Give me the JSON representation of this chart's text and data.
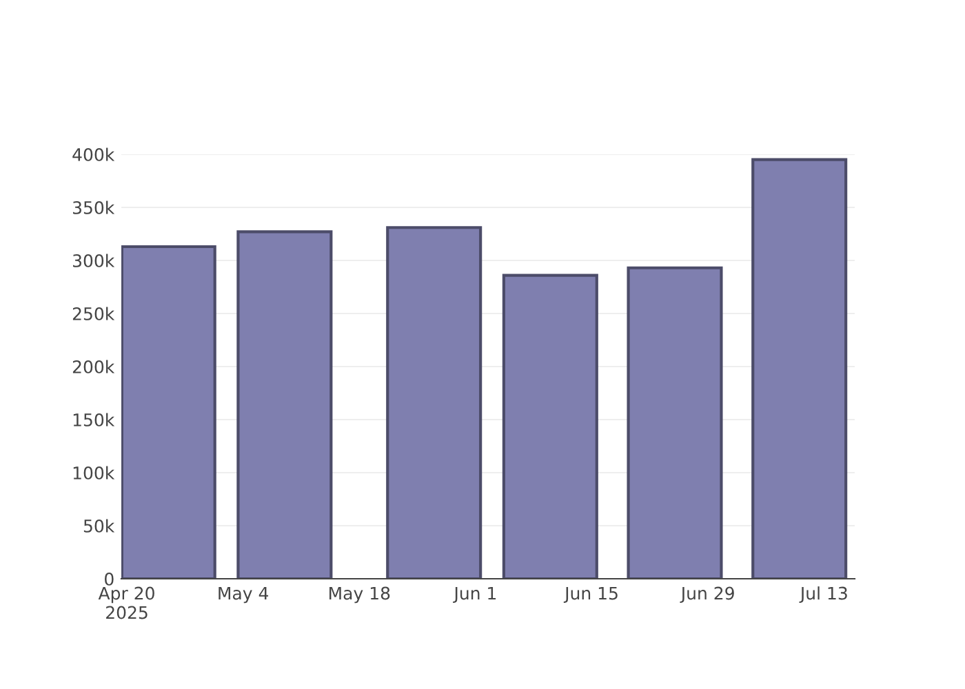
{
  "chart_data": {
    "type": "bar",
    "x": [
      "2025-04-25",
      "2025-05-09",
      "2025-05-27",
      "2025-06-10",
      "2025-06-25",
      "2025-07-10"
    ],
    "values": [
      313000,
      327000,
      331000,
      286000,
      293000,
      395000
    ],
    "color": "#7f7faf",
    "xlim": [
      "2025-04-19T08:00",
      "2025-07-16T16:00"
    ],
    "xticks": [
      {
        "value": "2025-04-20",
        "label": "Apr 20\n2025"
      },
      {
        "value": "2025-05-04",
        "label": "May 4"
      },
      {
        "value": "2025-05-18",
        "label": "May 18"
      },
      {
        "value": "2025-06-01",
        "label": "Jun 1"
      },
      {
        "value": "2025-06-15",
        "label": "Jun 15"
      },
      {
        "value": "2025-06-29",
        "label": "Jun 29"
      },
      {
        "value": "2025-07-13",
        "label": "Jul 13"
      }
    ],
    "ylim": [
      0,
      400000
    ],
    "yticks": [
      {
        "value": 0,
        "label": "0"
      },
      {
        "value": 50000,
        "label": "50k"
      },
      {
        "value": 100000,
        "label": "100k"
      },
      {
        "value": 150000,
        "label": "150k"
      },
      {
        "value": 200000,
        "label": "200k"
      },
      {
        "value": 250000,
        "label": "250k"
      },
      {
        "value": 300000,
        "label": "300k"
      },
      {
        "value": 350000,
        "label": "350k"
      },
      {
        "value": 400000,
        "label": "400k"
      }
    ],
    "grid": "y"
  }
}
